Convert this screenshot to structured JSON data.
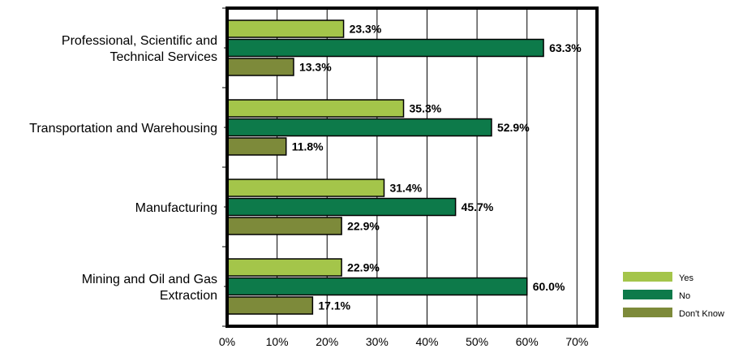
{
  "chart_data": {
    "type": "bar",
    "orientation": "horizontal",
    "categories": [
      [
        "Professional, Scientific and",
        "Technical Services"
      ],
      [
        "Transportation and Warehousing"
      ],
      [
        "Manufacturing"
      ],
      [
        "Mining and Oil and Gas",
        "Extraction"
      ]
    ],
    "series": [
      {
        "name": "Yes",
        "color": "#a4c54a",
        "values": [
          23.3,
          35.3,
          31.4,
          22.9
        ],
        "labels": [
          "23.3%",
          "35.3%",
          "31.4%",
          "22.9%"
        ]
      },
      {
        "name": "No",
        "color": "#0d7a4a",
        "values": [
          63.3,
          52.9,
          45.7,
          60.0
        ],
        "labels": [
          "63.3%",
          "52.9%",
          "45.7%",
          "60.0%"
        ]
      },
      {
        "name": "Don't Know",
        "color": "#7d8a3a",
        "values": [
          13.3,
          11.8,
          22.9,
          17.1
        ],
        "labels": [
          "13.3%",
          "11.8%",
          "22.9%",
          "17.1%"
        ]
      }
    ],
    "xlim": [
      0,
      74
    ],
    "xticks": [
      0,
      10,
      20,
      30,
      40,
      50,
      60,
      70
    ],
    "xtick_labels": [
      "0%",
      "10%",
      "20%",
      "30%",
      "40%",
      "50%",
      "60%",
      "70%"
    ],
    "grid": "vertical",
    "legend": "bottom-right"
  }
}
